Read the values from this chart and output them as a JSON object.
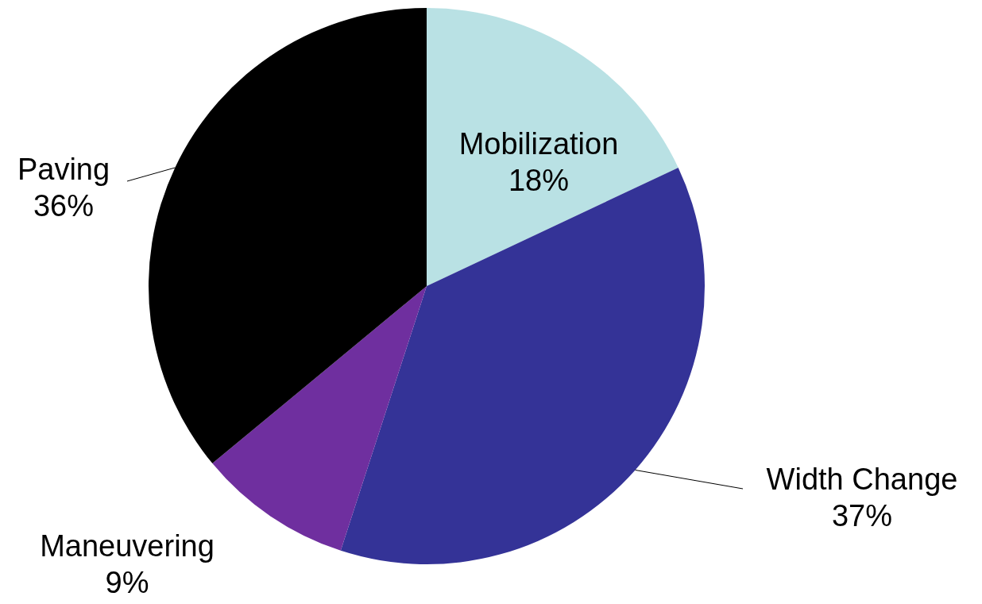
{
  "chart_data": {
    "type": "pie",
    "categories": [
      "Mobilization",
      "Width Change",
      "Maneuvering",
      "Paving"
    ],
    "values": [
      18,
      37,
      9,
      36
    ],
    "value_labels": [
      "18%",
      "37%",
      "9%",
      "36%"
    ],
    "colors": [
      "#b9e1e4",
      "#343397",
      "#6f2f9f",
      "#000000"
    ]
  }
}
